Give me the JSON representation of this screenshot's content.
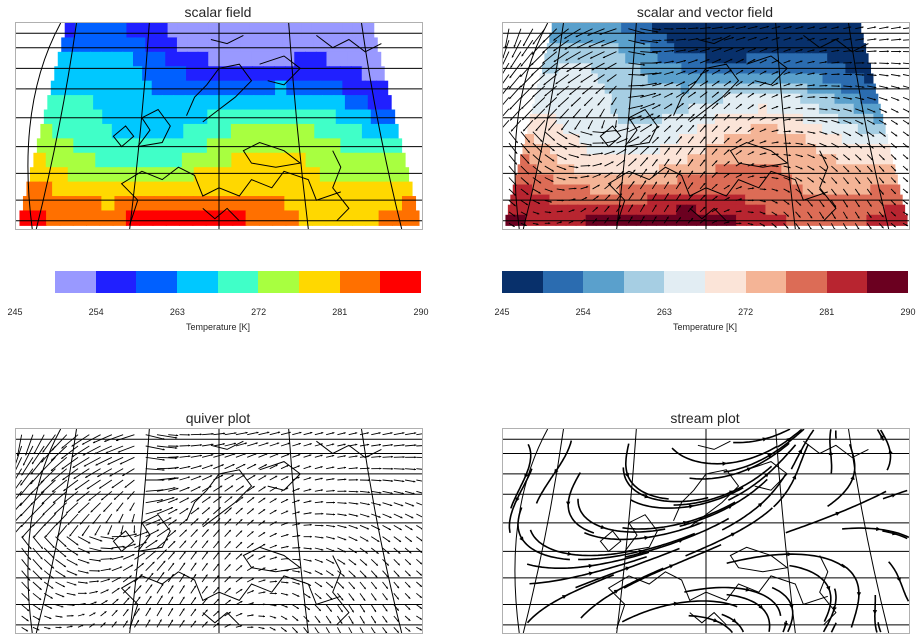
{
  "chart_data": [
    {
      "type": "heatmap",
      "title": "scalar field",
      "colorbar": {
        "label": "Temperature [K]",
        "ticks": [
          "245",
          "254",
          "263",
          "272",
          "281",
          "290"
        ],
        "range": [
          245,
          290
        ],
        "levels": 9,
        "colors": [
          "#9999ff",
          "#2020ff",
          "#0060ff",
          "#00c8ff",
          "#40ffc8",
          "#a8ff40",
          "#ffd800",
          "#ff7000",
          "#ff0000"
        ]
      }
    },
    {
      "type": "heatmap",
      "title": "scalar and vector field",
      "colorbar": {
        "label": "Temperature [K]",
        "ticks": [
          "245",
          "254",
          "263",
          "272",
          "281",
          "290"
        ],
        "range": [
          245,
          290
        ],
        "levels": 10,
        "colors": [
          "#08306b",
          "#2b6cb0",
          "#5aa0cc",
          "#a6cee3",
          "#e2edf3",
          "#fbe4d8",
          "#f4b496",
          "#dc6c56",
          "#b82530",
          "#6b0020"
        ]
      }
    },
    {
      "type": "quiver",
      "title": "quiver plot"
    },
    {
      "type": "stream",
      "title": "stream plot"
    }
  ]
}
